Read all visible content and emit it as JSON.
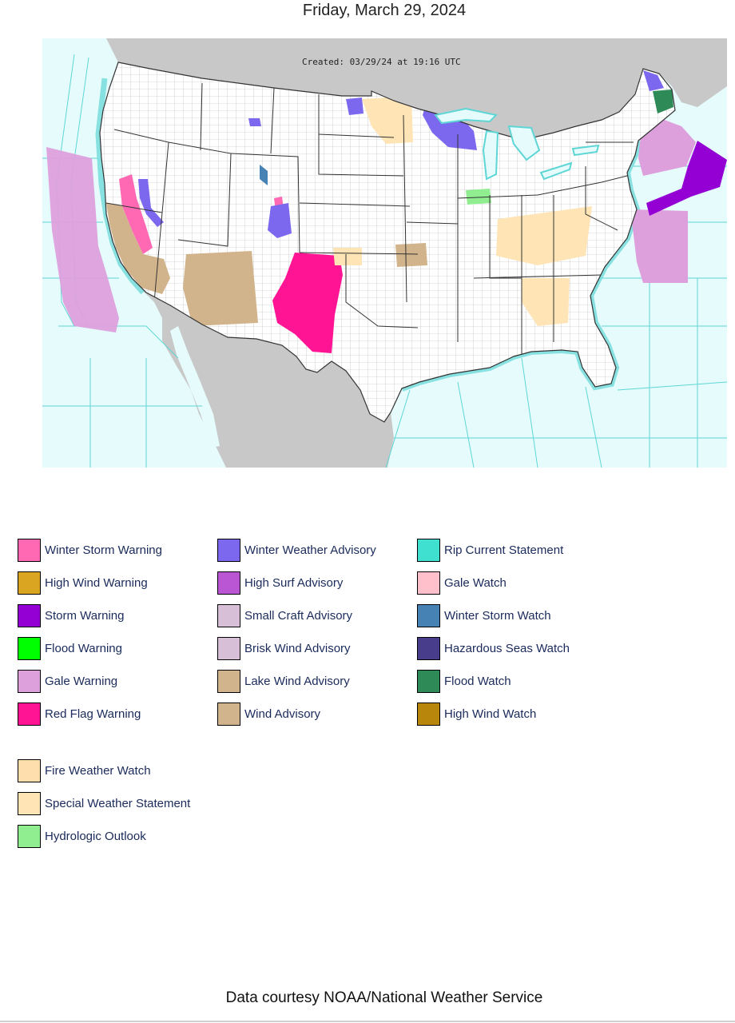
{
  "page": {
    "date": "Friday, March 29, 2024",
    "footer": "Data courtesy NOAA/National Weather Service"
  },
  "map": {
    "created": "Created: 03/29/24 at 19:16 UTC",
    "colors": {
      "ocean": "#e6fbfb",
      "foreign_land": "#c8c8c8",
      "us_land": "#ffffff",
      "marine_zone_border": "#5fd6d6",
      "county_border": "#a0a0a0",
      "state_border": "#333333"
    }
  },
  "legend": {
    "items": [
      {
        "label": "Winter Storm Warning",
        "color": "#ff69b4"
      },
      {
        "label": "High Wind Warning",
        "color": "#daa520"
      },
      {
        "label": "Storm Warning",
        "color": "#9400d3"
      },
      {
        "label": "Flood Warning",
        "color": "#00ff00"
      },
      {
        "label": "Gale Warning",
        "color": "#dda0dd"
      },
      {
        "label": "Red Flag Warning",
        "color": "#ff1493"
      },
      {
        "label": "Winter Weather Advisory",
        "color": "#7b68ee"
      },
      {
        "label": "High Surf Advisory",
        "color": "#ba55d3"
      },
      {
        "label": "Small Craft Advisory",
        "color": "#d8bfd8"
      },
      {
        "label": "Brisk Wind Advisory",
        "color": "#d8bfd8"
      },
      {
        "label": "Lake Wind Advisory",
        "color": "#d2b48c"
      },
      {
        "label": "Wind Advisory",
        "color": "#d2b48c"
      },
      {
        "label": "Rip Current Statement",
        "color": "#40e0d0"
      },
      {
        "label": "Gale Watch",
        "color": "#ffc0cb"
      },
      {
        "label": "Winter Storm Watch",
        "color": "#4682b4"
      },
      {
        "label": "Hazardous Seas Watch",
        "color": "#483d8b"
      },
      {
        "label": "Flood Watch",
        "color": "#2e8b57"
      },
      {
        "label": "High Wind Watch",
        "color": "#b8860b"
      },
      {
        "label": "Fire Weather Watch",
        "color": "#ffdead"
      },
      {
        "label": "Special Weather Statement",
        "color": "#ffe4b5"
      },
      {
        "label": "Hydrologic Outlook",
        "color": "#90ee90"
      }
    ]
  }
}
